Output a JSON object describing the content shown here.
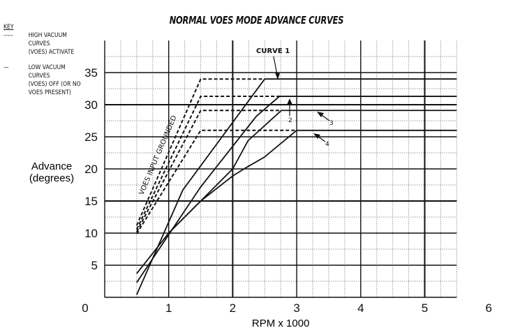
{
  "chart_data": {
    "type": "line",
    "title": "NORMAL VOES MODE ADVANCE CURVES",
    "xlabel": "RPM x 1000",
    "ylabel_line1": "Advance",
    "ylabel_line2": "(degrees)",
    "xlim": [
      0,
      5.5
    ],
    "ylim": [
      0,
      40
    ],
    "grid": true,
    "x_ticks": [
      "0",
      "1",
      "2",
      "3",
      "4",
      "5",
      "6"
    ],
    "y_ticks": [
      "5",
      "10",
      "15",
      "20",
      "25",
      "30",
      "35"
    ],
    "key": {
      "title": "KEY",
      "dashed": [
        "HIGH VACUUM",
        "CURVES",
        "(VOES) ACTIVATE"
      ],
      "solid": [
        "LOW VACUUM",
        "CURVES",
        "(VOES) OFF (OR NO",
        "VOES PRESENT)"
      ]
    },
    "annotations": {
      "curve1": "CURVE 1",
      "curve2": "2",
      "curve3": "3",
      "curve4": "4",
      "voes": "VOES INPUT GROUNDED"
    },
    "series": [
      {
        "name": "Curve 1 (low vacuum)",
        "style": "solid",
        "x": [
          0.5,
          1.22,
          2.5,
          5.5
        ],
        "y": [
          0.4,
          16.7,
          34,
          34
        ]
      },
      {
        "name": "Curve 2 (low vacuum)",
        "style": "solid",
        "x": [
          0.5,
          1.5,
          2.37,
          2.73,
          5.5
        ],
        "y": [
          2.3,
          17.2,
          28.2,
          31.3,
          31.3
        ]
      },
      {
        "name": "Curve 3 (low vacuum)",
        "style": "solid",
        "x": [
          0.5,
          1.0,
          2.0,
          2.24,
          2.76,
          5.5
        ],
        "y": [
          3.7,
          10,
          20,
          24.4,
          29.1,
          29.1
        ]
      },
      {
        "name": "Curve 4 (low vacuum)",
        "style": "solid",
        "x": [
          1.0,
          1.5,
          2.0,
          2.21,
          2.49,
          3.0,
          5.5
        ],
        "y": [
          10,
          15,
          18.9,
          20.2,
          21.8,
          26,
          26
        ]
      },
      {
        "name": "Curve 1 (high vacuum)",
        "style": "dashed",
        "x": [
          0.5,
          1.5,
          2.5
        ],
        "y": [
          11.2,
          34,
          34
        ]
      },
      {
        "name": "Curve 2 (high vacuum)",
        "style": "dashed",
        "x": [
          0.5,
          1.5,
          2.73
        ],
        "y": [
          10.6,
          31.3,
          31.3
        ]
      },
      {
        "name": "Curve 3 (high vacuum)",
        "style": "dashed",
        "x": [
          0.5,
          1.5,
          2.76
        ],
        "y": [
          10.2,
          29.1,
          29.1
        ]
      },
      {
        "name": "Curve 4 (high vacuum)",
        "style": "dashed",
        "x": [
          0.5,
          1.5,
          3.0
        ],
        "y": [
          9.9,
          26,
          26
        ]
      }
    ]
  }
}
